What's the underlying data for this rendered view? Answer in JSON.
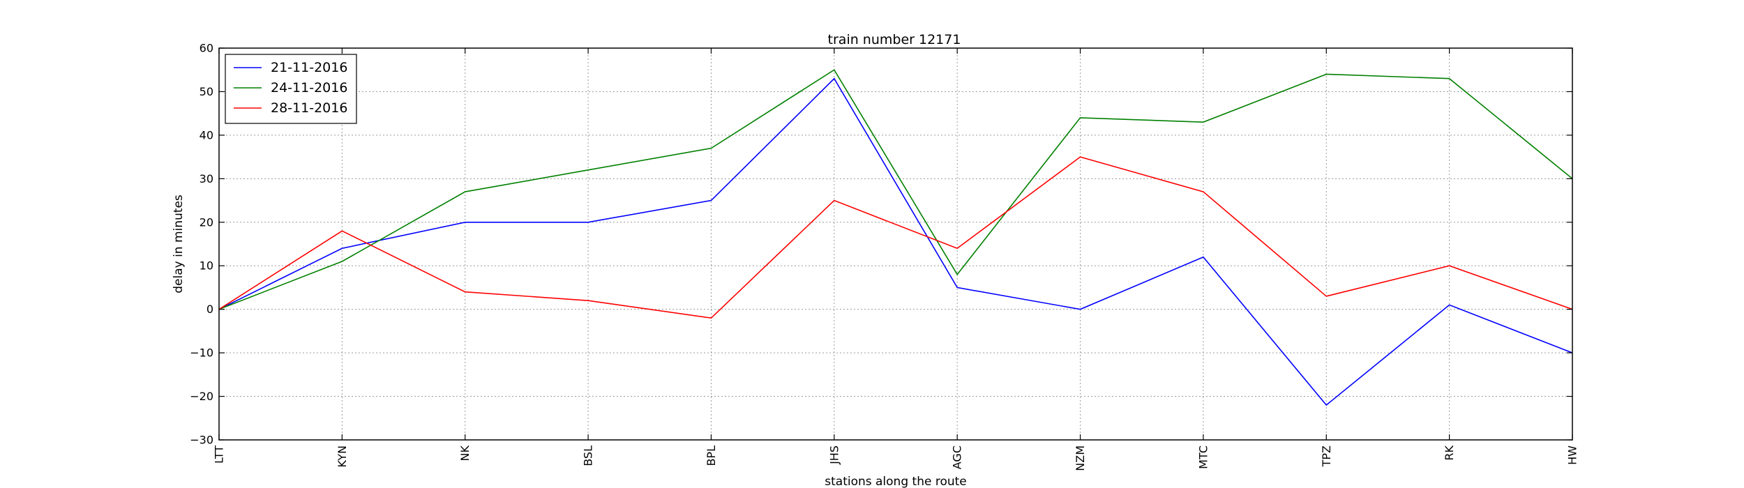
{
  "chart_data": {
    "type": "line",
    "title": "train number 12171",
    "xlabel": "stations along the route",
    "ylabel": "delay in minutes",
    "categories": [
      "LTT",
      "KYN",
      "NK",
      "BSL",
      "BPL",
      "JHS",
      "AGC",
      "NZM",
      "MTC",
      "TPZ",
      "RK",
      "HW"
    ],
    "ylim": [
      -30,
      60
    ],
    "yticks": [
      -30,
      -20,
      -10,
      0,
      10,
      20,
      30,
      40,
      50,
      60
    ],
    "ytick_labels": [
      "−30",
      "−20",
      "−10",
      "0",
      "10",
      "20",
      "30",
      "40",
      "50",
      "60"
    ],
    "grid": true,
    "legend_position": "top-left",
    "series": [
      {
        "name": "21-11-2016",
        "color": "#0000ff",
        "values": [
          0,
          14,
          20,
          20,
          25,
          53,
          5,
          0,
          12,
          -22,
          1,
          -10
        ]
      },
      {
        "name": "24-11-2016",
        "color": "#008000",
        "values": [
          0,
          11,
          27,
          32,
          37,
          55,
          8,
          44,
          43,
          54,
          53,
          30
        ]
      },
      {
        "name": "28-11-2016",
        "color": "#ff0000",
        "values": [
          0,
          18,
          4,
          2,
          -2,
          25,
          14,
          35,
          27,
          3,
          10,
          0
        ]
      }
    ]
  }
}
